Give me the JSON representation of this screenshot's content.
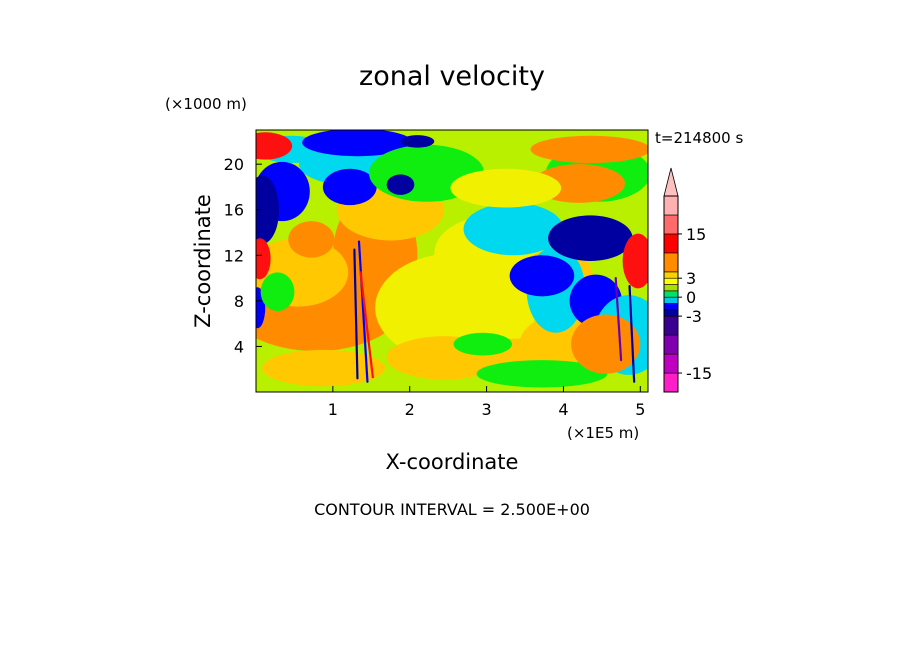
{
  "chart_data": {
    "type": "heatmap",
    "title": "zonal velocity",
    "xlabel": "X-coordinate",
    "ylabel": "Z-coordinate",
    "x_unit": "(×1E5 m)",
    "y_unit": "(×1000 m)",
    "time_label": "t=214800 s",
    "footer": "CONTOUR INTERVAL = 2.500E+00",
    "x_range": [
      0,
      5.1
    ],
    "y_range": [
      0,
      23
    ],
    "x_ticks": [
      "1",
      "2",
      "3",
      "4",
      "5"
    ],
    "y_ticks": [
      "4",
      "8",
      "12",
      "16",
      "20"
    ],
    "colorbar": {
      "tick_labels": [
        "15",
        "3",
        "0",
        "-3",
        "-15"
      ],
      "levels": [
        -20,
        -15,
        -10,
        -5,
        -3,
        -2,
        -1,
        0,
        1,
        2,
        3,
        5,
        10,
        15,
        20
      ],
      "colors": [
        "#ff1fc8",
        "#c000c0",
        "#8000b0",
        "#3a0090",
        "#0000a0",
        "#0000ff",
        "#00c8e8",
        "#00e070",
        "#a8e000",
        "#ffff00",
        "#ffd000",
        "#ff8c00",
        "#ff0000",
        "#ff6a6a",
        "#ffb0b0"
      ],
      "top_arrow_color": "#ffc0c0"
    },
    "color_scale": {
      "deep_blue": "#0000a0",
      "blue": "#0000ff",
      "cyan": "#00d8f0",
      "green": "#10ee10",
      "yellow_green": "#b8f000",
      "yellow": "#f0f000",
      "light_orange": "#ffc800",
      "orange": "#ff8c00",
      "red": "#ff1010",
      "purple": "#6a00b0"
    }
  }
}
